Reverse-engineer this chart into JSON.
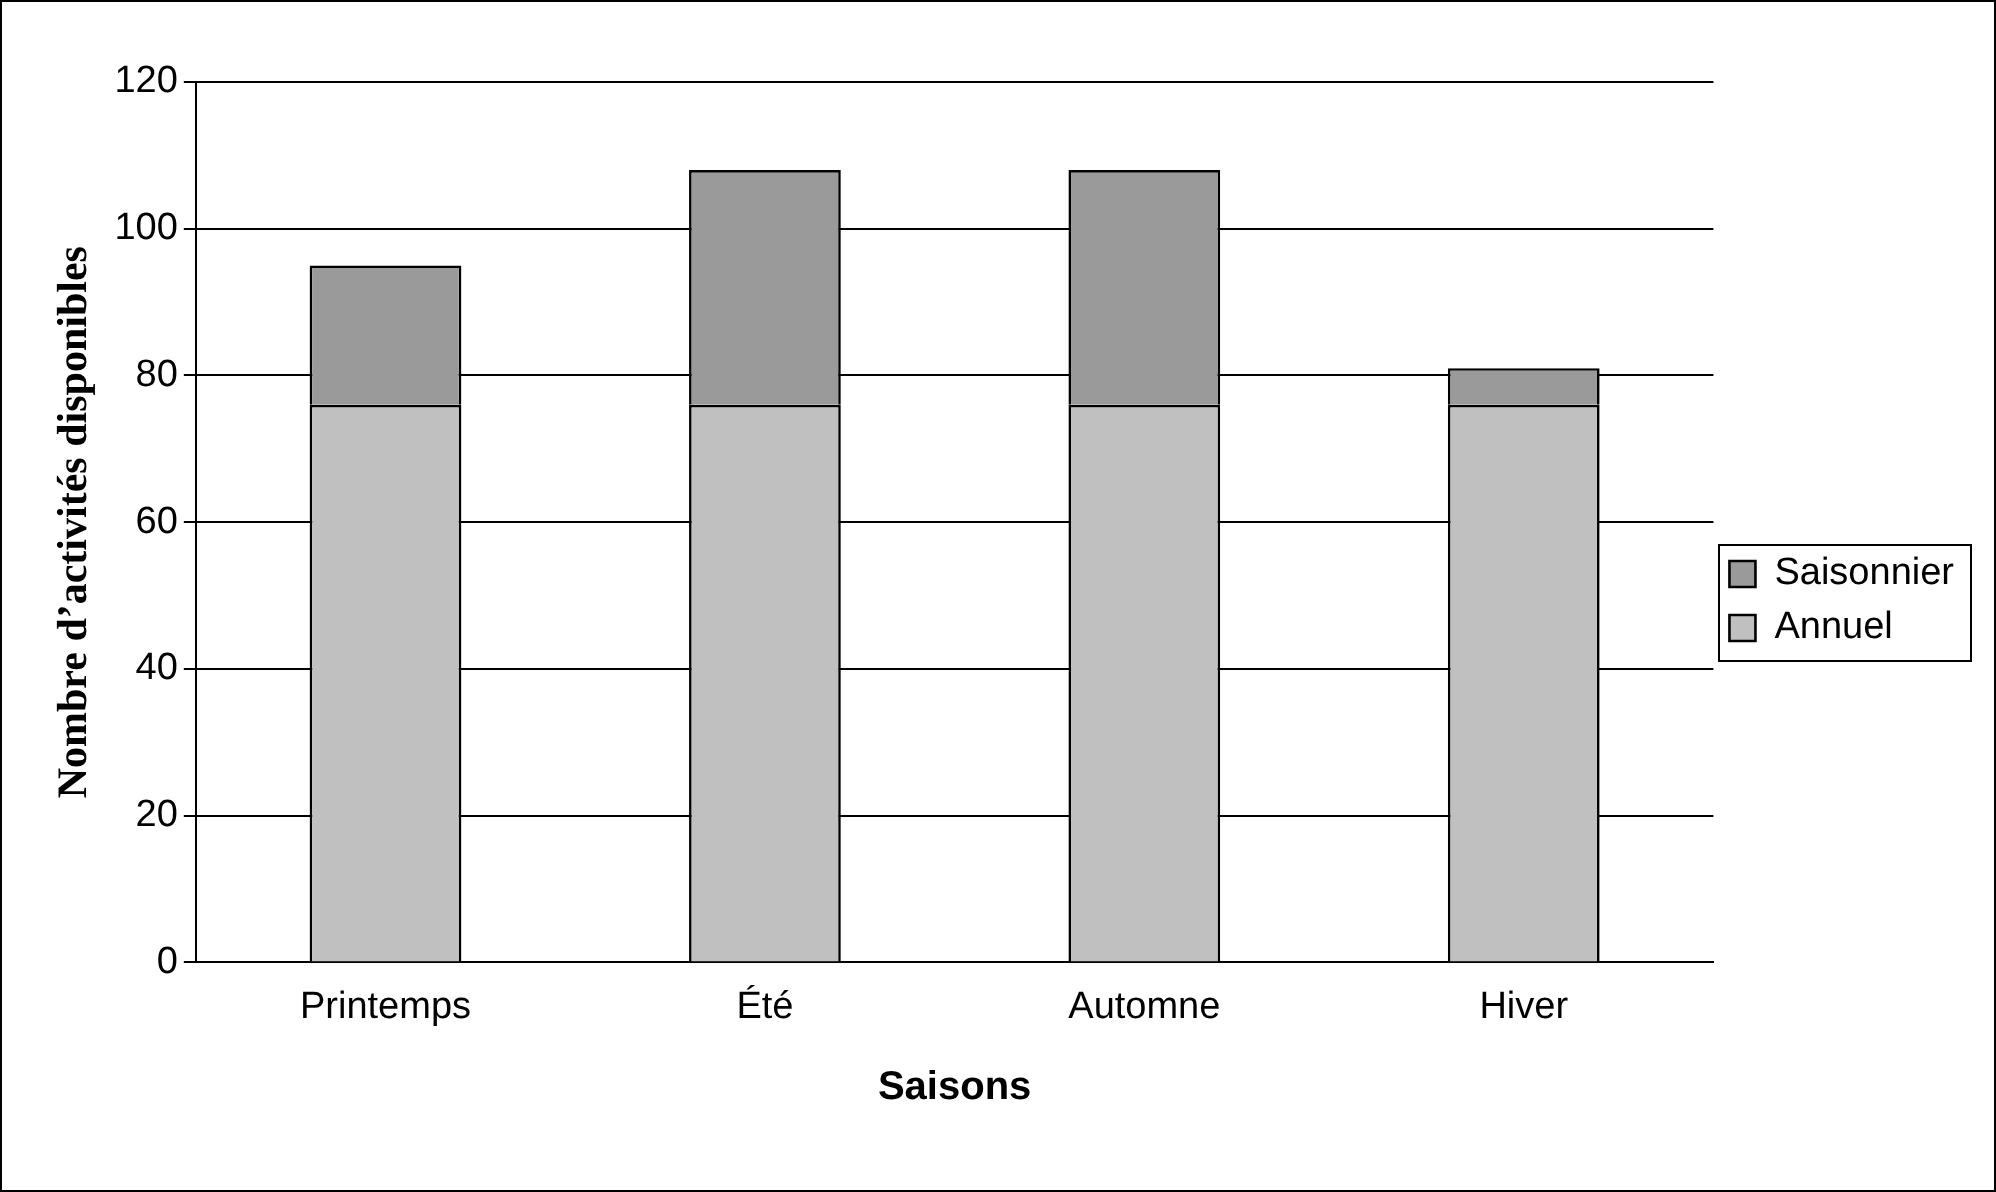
{
  "chart_data": {
    "type": "bar",
    "stacked": true,
    "xlabel": "Saisons",
    "ylabel": "Nombre d’activités disponibles",
    "categories": [
      "Printemps",
      "Été",
      "Automne",
      "Hiver"
    ],
    "series": [
      {
        "name": "Annuel",
        "color": "#c0c0c0",
        "values": [
          76,
          76,
          76,
          76
        ]
      },
      {
        "name": "Saisonnier",
        "color": "#9a9a9a",
        "values": [
          19,
          32,
          32,
          5
        ]
      }
    ],
    "ylim": [
      0,
      120
    ],
    "yticks": [
      0,
      20,
      40,
      60,
      80,
      100,
      120
    ],
    "grid": "y",
    "legend": "right"
  }
}
